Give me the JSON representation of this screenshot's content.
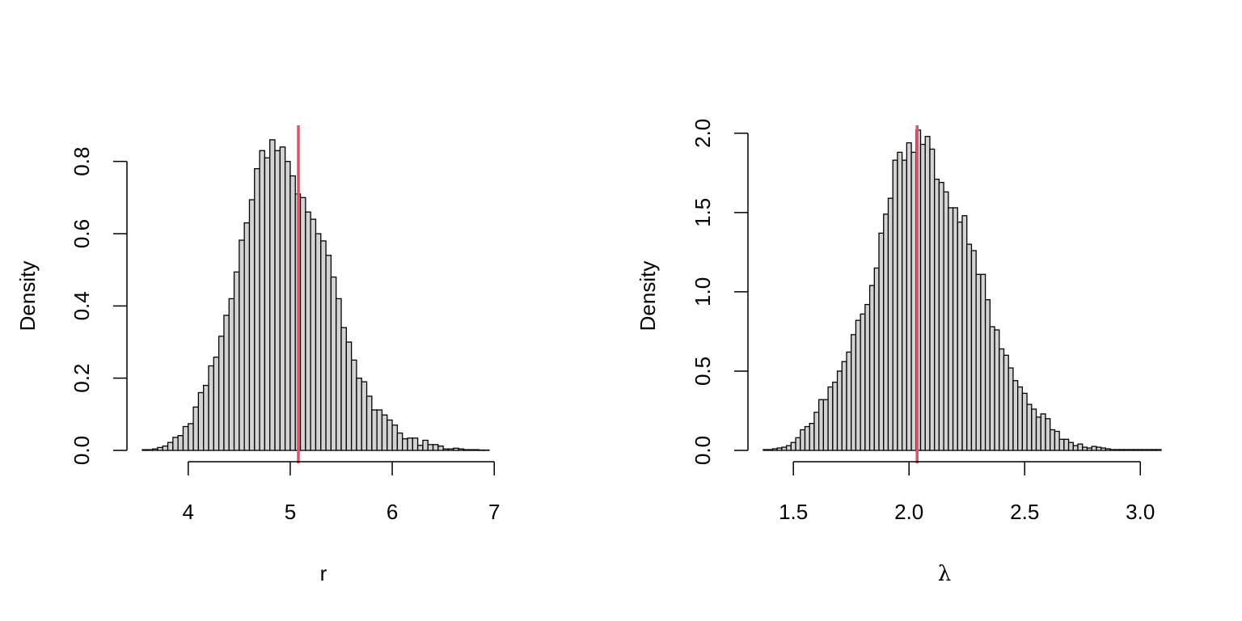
{
  "chart_data": [
    {
      "type": "histogram",
      "xlabel": "r",
      "ylabel": "Density",
      "xlim": [
        3.55,
        7.45
      ],
      "ylim": [
        0,
        0.9
      ],
      "x_ticks": [
        4,
        5,
        6,
        7
      ],
      "x_tick_labels": [
        "4",
        "5",
        "6",
        "7"
      ],
      "y_ticks": [
        0.0,
        0.2,
        0.4,
        0.6,
        0.8
      ],
      "y_tick_labels": [
        "0.0",
        "0.2",
        "0.4",
        "0.6",
        "0.8"
      ],
      "bin_start": 3.55,
      "bin_width": 0.05,
      "densities": [
        0.002,
        0.002,
        0.004,
        0.008,
        0.012,
        0.022,
        0.036,
        0.041,
        0.066,
        0.074,
        0.12,
        0.16,
        0.18,
        0.234,
        0.258,
        0.316,
        0.374,
        0.42,
        0.494,
        0.582,
        0.63,
        0.694,
        0.78,
        0.83,
        0.81,
        0.86,
        0.83,
        0.84,
        0.8,
        0.76,
        0.71,
        0.7,
        0.66,
        0.64,
        0.6,
        0.58,
        0.54,
        0.48,
        0.42,
        0.34,
        0.3,
        0.25,
        0.2,
        0.19,
        0.15,
        0.112,
        0.112,
        0.098,
        0.084,
        0.07,
        0.048,
        0.032,
        0.034,
        0.034,
        0.014,
        0.028,
        0.016,
        0.016,
        0.012,
        0.004,
        0.004,
        0.006,
        0.004,
        0.002,
        0.002,
        0.002,
        0.001,
        0.001
      ],
      "reference_line": {
        "x": 5.08,
        "color": "#df536b"
      },
      "bar_fill": "#d3d3d3",
      "bar_stroke": "#000000"
    },
    {
      "type": "histogram",
      "xlabel": "λ",
      "ylabel": "Density",
      "xlim": [
        1.37,
        3.09
      ],
      "ylim": [
        0,
        2.05
      ],
      "x_ticks": [
        1.5,
        2.0,
        2.5,
        3.0
      ],
      "x_tick_labels": [
        "1.5",
        "2.0",
        "2.5",
        "3.0"
      ],
      "y_ticks": [
        0.0,
        0.5,
        1.0,
        1.5,
        2.0
      ],
      "y_tick_labels": [
        "0.0",
        "0.5",
        "1.0",
        "1.5",
        "2.0"
      ],
      "bin_start": 1.37,
      "bin_width": 0.02,
      "densities": [
        0.005,
        0.005,
        0.01,
        0.015,
        0.02,
        0.03,
        0.05,
        0.08,
        0.13,
        0.15,
        0.17,
        0.24,
        0.32,
        0.32,
        0.4,
        0.43,
        0.5,
        0.56,
        0.62,
        0.73,
        0.82,
        0.86,
        0.92,
        1.04,
        1.15,
        1.37,
        1.49,
        1.59,
        1.83,
        1.88,
        1.83,
        1.94,
        1.88,
        2.02,
        1.93,
        1.98,
        1.9,
        1.71,
        1.69,
        1.63,
        1.53,
        1.53,
        1.44,
        1.48,
        1.3,
        1.26,
        1.11,
        1.11,
        0.95,
        0.78,
        0.76,
        0.64,
        0.6,
        0.52,
        0.44,
        0.4,
        0.36,
        0.29,
        0.26,
        0.21,
        0.23,
        0.2,
        0.13,
        0.12,
        0.07,
        0.07,
        0.05,
        0.03,
        0.04,
        0.02,
        0.015,
        0.025,
        0.02,
        0.015,
        0.01,
        0.005,
        0.005,
        0.005,
        0.005,
        0.005,
        0.005,
        0.005,
        0.005,
        0.005,
        0.005,
        0.005
      ],
      "reference_line": {
        "x": 2.035,
        "color": "#df536b"
      },
      "bar_fill": "#d3d3d3",
      "bar_stroke": "#000000"
    }
  ]
}
